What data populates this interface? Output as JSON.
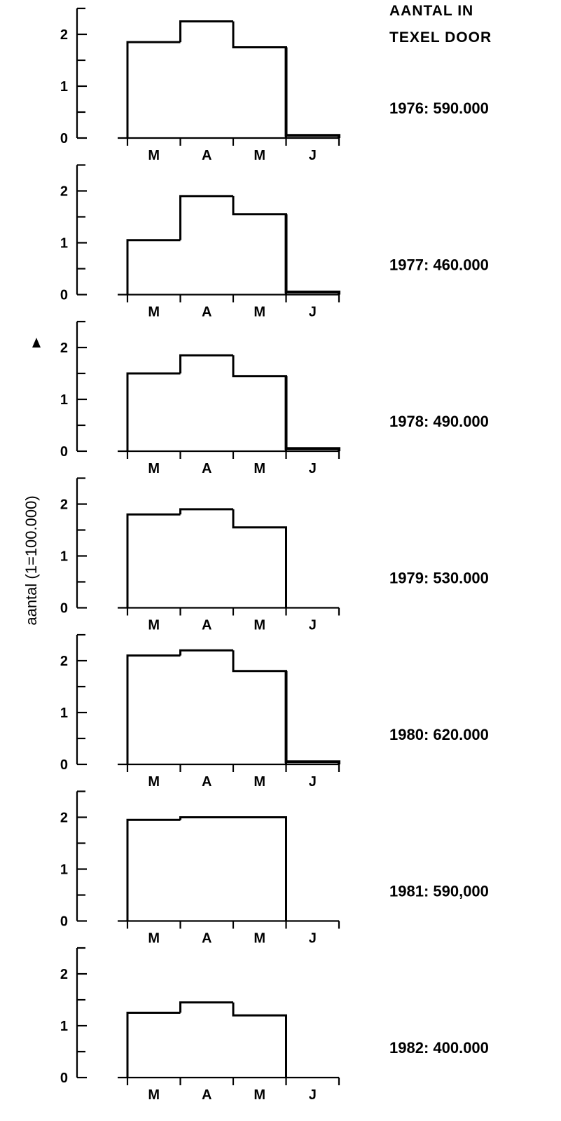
{
  "header": {
    "line1": "AANTAL   IN",
    "line2": "TEXEL   DOOR"
  },
  "ylabel": "aantal (1=100.000)",
  "chart_data": [
    {
      "type": "bar",
      "title": "1976: 590.000",
      "categories": [
        "M",
        "A",
        "M",
        "J"
      ],
      "values": [
        1.85,
        2.25,
        1.75,
        0.05
      ],
      "yticks": [
        "0",
        "1",
        "2"
      ],
      "ylim": [
        0,
        2.5
      ]
    },
    {
      "type": "bar",
      "title": "1977: 460.000",
      "categories": [
        "M",
        "A",
        "M",
        "J"
      ],
      "values": [
        1.05,
        1.9,
        1.55,
        0.05
      ],
      "yticks": [
        "0",
        "1",
        "2"
      ],
      "ylim": [
        0,
        2.5
      ]
    },
    {
      "type": "bar",
      "title": "1978: 490.000",
      "categories": [
        "M",
        "A",
        "M",
        "J"
      ],
      "values": [
        1.5,
        1.85,
        1.45,
        0.05
      ],
      "yticks": [
        "0",
        "1",
        "2"
      ],
      "ylim": [
        0,
        2.5
      ]
    },
    {
      "type": "bar",
      "title": "1979: 530.000",
      "categories": [
        "M",
        "A",
        "M",
        "J"
      ],
      "values": [
        1.8,
        1.9,
        1.55,
        0
      ],
      "yticks": [
        "0",
        "1",
        "2"
      ],
      "ylim": [
        0,
        2.5
      ]
    },
    {
      "type": "bar",
      "title": "1980: 620.000",
      "categories": [
        "M",
        "A",
        "M",
        "J"
      ],
      "values": [
        2.1,
        2.2,
        1.8,
        0.05
      ],
      "yticks": [
        "0",
        "1",
        "2"
      ],
      "ylim": [
        0,
        2.5
      ]
    },
    {
      "type": "bar",
      "title": "1981:  590,000",
      "categories": [
        "M",
        "A",
        "M",
        "J"
      ],
      "values": [
        1.95,
        2.0,
        2.0,
        0
      ],
      "yticks": [
        "0",
        "1",
        "2"
      ],
      "ylim": [
        0,
        2.5
      ]
    },
    {
      "type": "bar",
      "title": "1982: 400.000",
      "categories": [
        "M",
        "A",
        "M",
        "J"
      ],
      "values": [
        1.25,
        1.45,
        1.2,
        0
      ],
      "yticks": [
        "0",
        "1",
        "2"
      ],
      "ylim": [
        0,
        2.5
      ]
    }
  ]
}
